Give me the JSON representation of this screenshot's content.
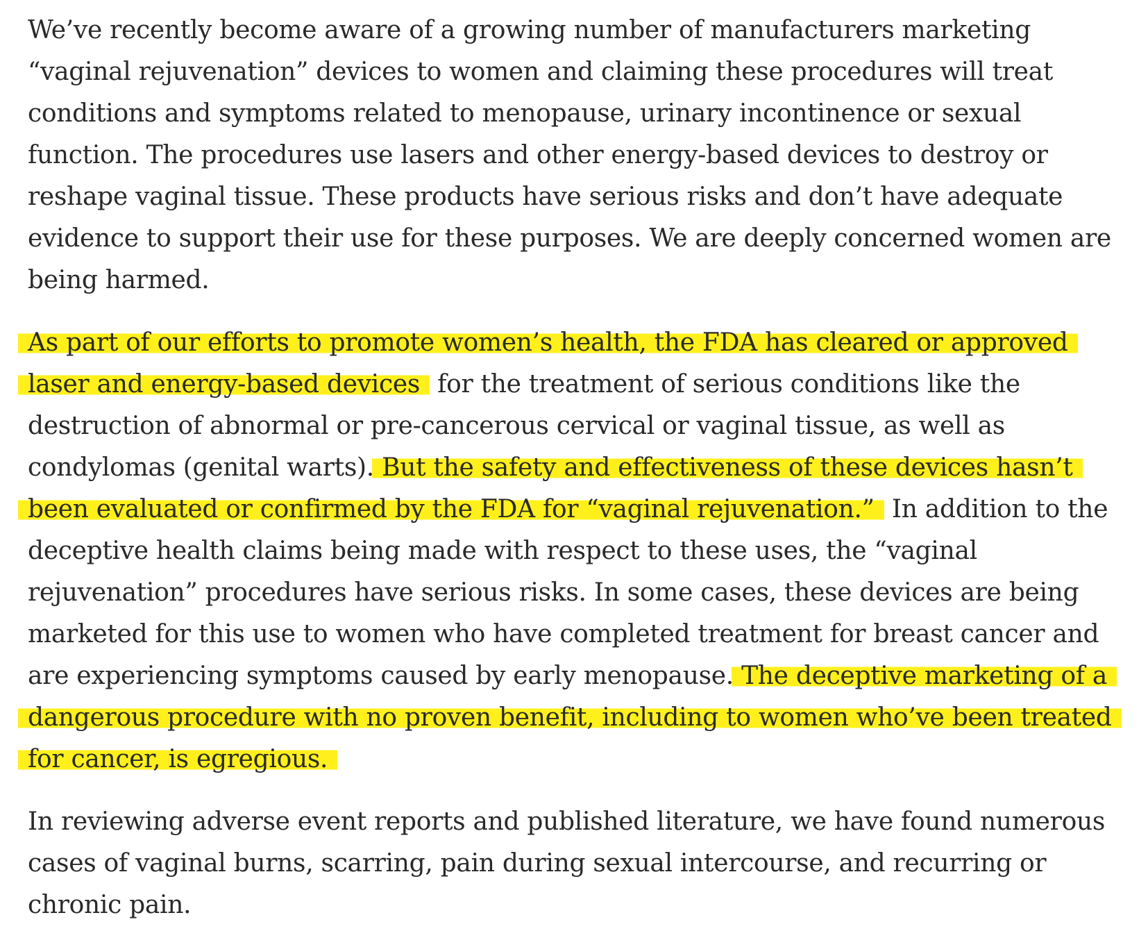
{
  "article": {
    "paragraphs": [
      {
        "segments": [
          {
            "text": "We’ve recently become aware of a growing number of manufacturers marketing “vaginal rejuvenation” devices to women and claiming these procedures will treat conditions and symptoms related to menopause, urinary incontinence or sexual function. The procedures use lasers and other energy-based devices to destroy or reshape vaginal tissue. These products have serious risks and don’t have adequate evidence to support their use for these purposes. We are deeply concerned women are being harmed.",
            "highlighted": false
          }
        ]
      },
      {
        "segments": [
          {
            "text": "As part of our efforts to promote women’s health, the FDA has cleared or approved laser and energy-based devices",
            "highlighted": true
          },
          {
            "text": " for the treatment of serious conditions like the destruction of abnormal or pre-cancerous cervical or vaginal tissue, as well as condylomas (genital warts). ",
            "highlighted": false
          },
          {
            "text": "But the safety and effectiveness of these devices hasn’t been evaluated or confirmed by the FDA for “vaginal rejuvenation.”",
            "highlighted": true
          },
          {
            "text": " In addition to the deceptive health claims being made with respect to these uses, the “vaginal rejuvenation” procedures have serious risks. In some cases, these devices are being marketed for this use to women who have completed treatment for breast cancer and are experiencing symptoms caused by early menopause. ",
            "highlighted": false
          },
          {
            "text": "The deceptive marketing of a dangerous procedure with no proven benefit, including to women who’ve been treated for cancer, is egregious.",
            "highlighted": true
          }
        ]
      },
      {
        "segments": [
          {
            "text": "In reviewing adverse event reports and published literature, we have found numerous cases of vaginal burns, scarring, pain during sexual intercourse, and recurring or chronic pain.",
            "highlighted": false
          }
        ]
      }
    ],
    "highlight_color": "#fff01c",
    "text_color": "#292929"
  }
}
